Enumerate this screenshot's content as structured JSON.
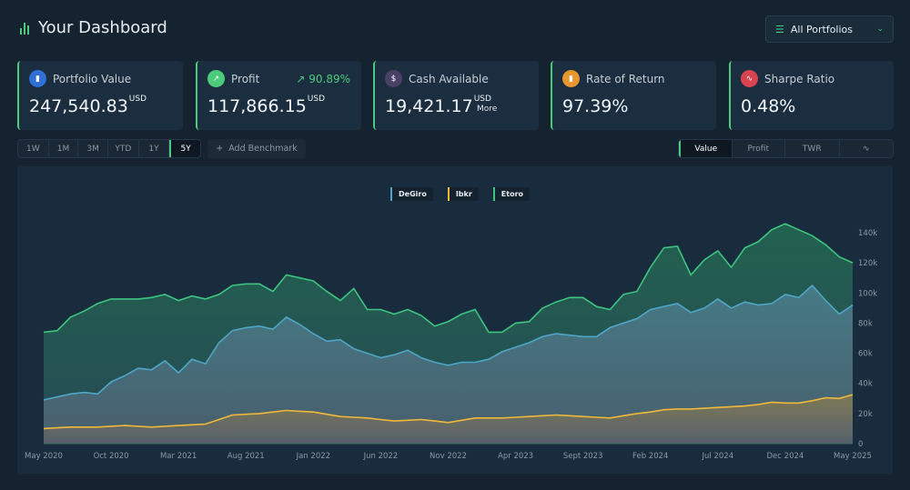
{
  "header": {
    "title": "Your Dashboard",
    "portfolio_select": "All Portfolios"
  },
  "cards": [
    {
      "label": "Portfolio Value",
      "value": "247,540.83",
      "unit": "USD",
      "icon": "bar-chart-icon",
      "color": "#2f6fd6"
    },
    {
      "label": "Profit",
      "value": "117,866.15",
      "unit": "USD",
      "change": "90.89%",
      "icon": "trending-up-icon",
      "color": "#4ccc7a"
    },
    {
      "label": "Cash Available",
      "value": "19,421.17",
      "unit": "USD",
      "more": "More",
      "icon": "dollar-icon",
      "color": "#4a3f66"
    },
    {
      "label": "Rate of Return",
      "value": "97.39%",
      "icon": "bar-chart-icon",
      "color": "#e8962e"
    },
    {
      "label": "Sharpe Ratio",
      "value": "0.48%",
      "icon": "pulse-icon",
      "color": "#d9434f"
    }
  ],
  "ranges": {
    "options": [
      "1W",
      "1M",
      "3M",
      "YTD",
      "1Y",
      "5Y"
    ],
    "selected": "5Y"
  },
  "benchmark_label": "Add Benchmark",
  "views": {
    "options": [
      "Value",
      "Profit",
      "TWR"
    ],
    "selected": "Value",
    "extra_icon": "line-chart-icon"
  },
  "accent": "#4ccc7a",
  "chart_data": {
    "type": "area",
    "x_start": "May 2020",
    "x_end": "May 2025",
    "x_interval": "monthly",
    "x_ticks": [
      "May 2020",
      "Oct 2020",
      "Mar 2021",
      "Aug 2021",
      "Jan 2022",
      "Jun 2022",
      "Nov 2022",
      "Apr 2023",
      "Sept 2023",
      "Feb 2024",
      "Jul 2024",
      "Dec 2024",
      "May 2025"
    ],
    "y_ticks": [
      "0",
      "20k",
      "40k",
      "60k",
      "80k",
      "100k",
      "120k",
      "140k"
    ],
    "ylim": [
      0,
      145000
    ],
    "legend_position": "top-center",
    "series": [
      {
        "name": "DeGiro",
        "color": "#4ea6c7",
        "values": [
          29,
          31,
          33,
          34,
          33,
          41,
          45,
          50,
          49,
          55,
          47,
          56,
          53,
          67,
          75,
          77,
          78,
          76,
          84,
          79,
          73,
          68,
          69,
          63,
          60,
          57,
          59,
          62,
          57,
          54,
          52,
          54,
          54,
          56,
          61,
          64,
          67,
          71,
          73,
          72,
          71,
          71,
          77,
          80,
          83,
          89,
          91,
          93,
          87,
          90,
          96,
          90,
          94,
          92,
          93,
          99,
          97,
          105,
          95,
          86,
          92
        ]
      },
      {
        "name": "Ibkr",
        "color": "#f0b93a",
        "values": [
          10,
          10.5,
          11,
          11,
          11,
          11.5,
          12,
          11.5,
          11,
          11.5,
          12,
          12.5,
          13,
          16,
          19,
          19.5,
          20,
          21,
          22,
          21.5,
          21,
          19.5,
          18,
          17.5,
          17,
          16,
          15,
          15.5,
          16,
          15,
          14,
          15.5,
          17,
          17,
          17,
          17.5,
          18,
          18.5,
          19,
          18.5,
          18,
          17.5,
          17,
          18.5,
          20,
          21,
          22.5,
          23,
          23,
          23.5,
          24,
          24.5,
          25,
          26,
          27.5,
          27,
          27,
          28.5,
          30.5,
          30,
          32.5
        ]
      },
      {
        "name": "Etoro",
        "color": "#3dc47e",
        "values": [
          74,
          75,
          84,
          88,
          93,
          96,
          96,
          96,
          97,
          99,
          95,
          98,
          96,
          99,
          105,
          106,
          106,
          101,
          112,
          110,
          108,
          101,
          95,
          103,
          89,
          89,
          86,
          89,
          85,
          78,
          81,
          86,
          89,
          74,
          74,
          80,
          81,
          90,
          94,
          97,
          97,
          91,
          89,
          99,
          101,
          117,
          130,
          131,
          112,
          122,
          128,
          117,
          130,
          134,
          142,
          146,
          142,
          138,
          132,
          124,
          120
        ]
      }
    ],
    "value_unit": "thousands USD"
  }
}
